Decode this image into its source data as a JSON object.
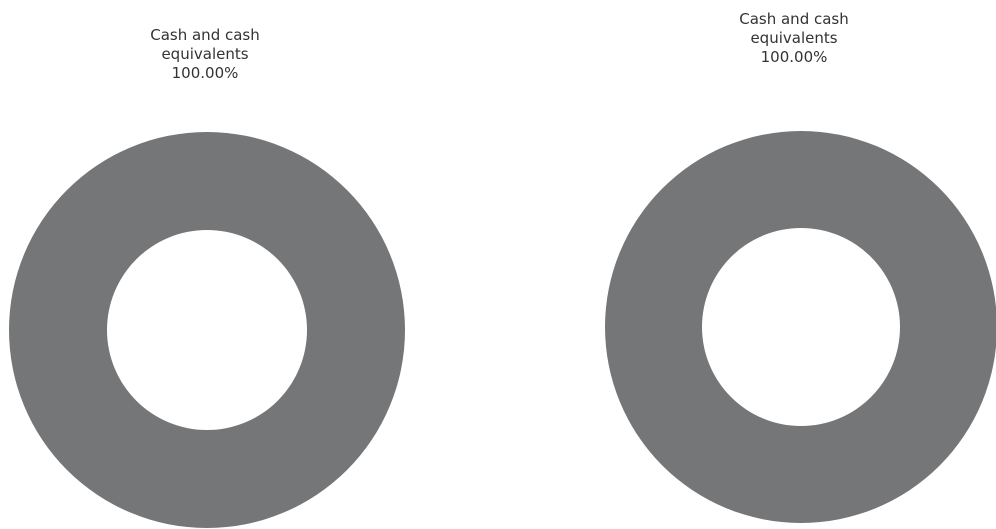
{
  "chart_data": [
    {
      "type": "pie",
      "donut": true,
      "slices": [
        {
          "name_lines": [
            "Cash and cash",
            "equivalents"
          ],
          "value_label": "100.00%",
          "value": 100.0,
          "color": "#757678"
        }
      ]
    },
    {
      "type": "pie",
      "donut": true,
      "slices": [
        {
          "name_lines": [
            "Cash and cash",
            "equivalents"
          ],
          "value_label": "100.00%",
          "value": 100.0,
          "color": "#757678"
        }
      ]
    }
  ]
}
